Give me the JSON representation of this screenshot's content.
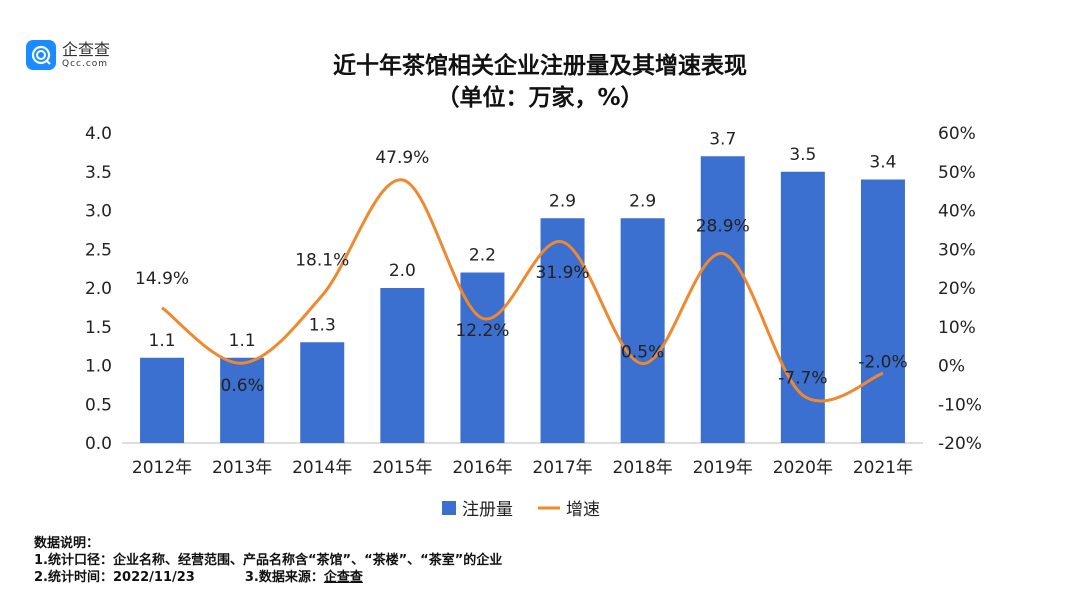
{
  "logo": {
    "name_cn": "企查查",
    "name_en": "Qcc.com"
  },
  "title": "近十年茶馆相关企业注册量及其增速表现",
  "subtitle": "（单位：万家，%）",
  "chart_data": {
    "type": "bar+line",
    "title": "近十年茶馆相关企业注册量及其增速表现",
    "subtitle": "（单位：万家，%）",
    "categories": [
      "2012年",
      "2013年",
      "2014年",
      "2015年",
      "2016年",
      "2017年",
      "2018年",
      "2019年",
      "2020年",
      "2021年"
    ],
    "series": [
      {
        "name": "注册量",
        "type": "bar",
        "axis": "left",
        "color": "#3b6fd0",
        "values": [
          1.1,
          1.1,
          1.3,
          2.0,
          2.2,
          2.9,
          2.9,
          3.7,
          3.5,
          3.4
        ],
        "labels": [
          "1.1",
          "1.1",
          "1.3",
          "2.0",
          "2.2",
          "2.9",
          "2.9",
          "3.7",
          "3.5",
          "3.4"
        ]
      },
      {
        "name": "增速",
        "type": "line",
        "axis": "right",
        "color": "#f0882e",
        "smooth": true,
        "values": [
          14.9,
          0.6,
          18.1,
          47.9,
          12.2,
          31.9,
          0.5,
          28.9,
          -7.7,
          -2.0
        ],
        "labels": [
          "14.9%",
          "0.6%",
          "18.1%",
          "47.9%",
          "12.2%",
          "31.9%",
          "0.5%",
          "28.9%",
          "-7.7%",
          "-2.0%"
        ]
      }
    ],
    "y_left": {
      "lim": [
        0,
        4.0
      ],
      "ticks": [
        "0.0",
        "0.5",
        "1.0",
        "1.5",
        "2.0",
        "2.5",
        "3.0",
        "3.5",
        "4.0"
      ]
    },
    "y_right": {
      "lim": [
        -20,
        60
      ],
      "ticks": [
        "-20%",
        "-10%",
        "0%",
        "10%",
        "20%",
        "30%",
        "40%",
        "50%",
        "60%"
      ]
    },
    "grid": false,
    "legend": "bottom"
  },
  "notes": {
    "heading": "数据说明：",
    "line1": "1.统计口径：企业名称、经营范围、产品名称含“茶馆”、“茶楼”、“茶室”的企业",
    "line2": "2.统计时间：2022/11/23",
    "line3_label": "3.数据来源：",
    "line3_value": "企查查"
  }
}
